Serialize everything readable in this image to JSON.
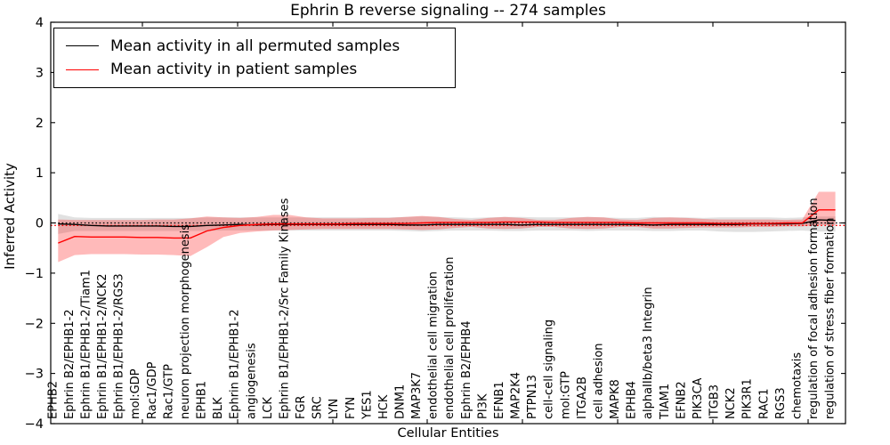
{
  "legend": {
    "entries": [
      {
        "label": "Mean activity in all permuted samples",
        "color": "#000000"
      },
      {
        "label": "Mean activity in patient samples",
        "color": "#ff0000"
      }
    ]
  },
  "chart_data": {
    "type": "line",
    "title": "Ephrin B reverse signaling -- 274 samples",
    "xlabel": "Cellular Entities",
    "ylabel": "Inferred Activity",
    "ylim": [
      -4,
      4
    ],
    "yticks": [
      4,
      3,
      2,
      1,
      0,
      -1,
      -2,
      -3,
      -4
    ],
    "grid": false,
    "legend_position": "upper left",
    "categories": [
      "EPHB2",
      "Ephrin B2/EPHB1-2",
      "Ephrin B1/EPHB1-2/Tiam1",
      "Ephrin B1/EPHB1-2/NCK2",
      "Ephrin B1/EPHB1-2/RGS3",
      "mol:GDP",
      "Rac1/GDP",
      "Rac1/GTP",
      "neuron projection morphogenesis",
      "EPHB1",
      "BLK",
      "Ephrin B1/EPHB1-2",
      "angiogenesis",
      "LCK",
      "Ephrin B1/EPHB1-2/Src Family Kinases",
      "FGR",
      "SRC",
      "LYN",
      "FYN",
      "YES1",
      "HCK",
      "DNM1",
      "MAP3K7",
      "endothelial cell migration",
      "endothelial cell proliferation",
      "Ephrin B2/EPHB4",
      "PI3K",
      "EFNB1",
      "MAP2K4",
      "PTPN13",
      "cell-cell signaling",
      "mol:GTP",
      "ITGA2B",
      "cell adhesion",
      "MAPK8",
      "EPHB4",
      "alphaIIb/beta3 Integrin",
      "TIAM1",
      "EFNB2",
      "PIK3CA",
      "ITGB3",
      "NCK2",
      "PIK3R1",
      "RAC1",
      "RGS3",
      "chemotaxis",
      "regulation of focal adhesion formation",
      "regulation of stress fiber formation"
    ],
    "series": [
      {
        "name": "Mean activity in all permuted samples",
        "color": "#000000",
        "band_color": "#a8a8a8",
        "band_opacity": 0.35,
        "values": [
          -0.02,
          -0.03,
          -0.05,
          -0.06,
          -0.06,
          -0.06,
          -0.06,
          -0.07,
          -0.07,
          -0.05,
          -0.04,
          -0.03,
          -0.04,
          -0.03,
          -0.03,
          -0.03,
          -0.03,
          -0.03,
          -0.03,
          -0.03,
          -0.03,
          -0.04,
          -0.04,
          -0.03,
          -0.03,
          -0.03,
          -0.03,
          -0.03,
          -0.04,
          -0.03,
          -0.03,
          -0.03,
          -0.03,
          -0.03,
          -0.03,
          -0.03,
          -0.04,
          -0.03,
          -0.03,
          -0.03,
          -0.03,
          -0.03,
          -0.02,
          -0.02,
          -0.02,
          -0.01,
          0.06,
          0.05
        ],
        "band_upper": [
          0.18,
          0.11,
          0.1,
          0.1,
          0.1,
          0.1,
          0.1,
          0.1,
          0.1,
          0.11,
          0.11,
          0.11,
          0.11,
          0.11,
          0.11,
          0.11,
          0.11,
          0.11,
          0.11,
          0.11,
          0.11,
          0.12,
          0.13,
          0.12,
          0.11,
          0.1,
          0.11,
          0.12,
          0.12,
          0.11,
          0.11,
          0.11,
          0.12,
          0.11,
          0.1,
          0.1,
          0.12,
          0.11,
          0.11,
          0.1,
          0.11,
          0.11,
          0.11,
          0.11,
          0.1,
          0.11,
          0.13,
          0.13
        ],
        "band_lower": [
          -0.22,
          -0.16,
          -0.16,
          -0.16,
          -0.16,
          -0.16,
          -0.16,
          -0.16,
          -0.16,
          -0.16,
          -0.15,
          -0.15,
          -0.15,
          -0.15,
          -0.15,
          -0.15,
          -0.15,
          -0.15,
          -0.15,
          -0.15,
          -0.15,
          -0.16,
          -0.17,
          -0.16,
          -0.15,
          -0.15,
          -0.15,
          -0.16,
          -0.16,
          -0.15,
          -0.15,
          -0.15,
          -0.16,
          -0.15,
          -0.15,
          -0.15,
          -0.16,
          -0.16,
          -0.15,
          -0.15,
          -0.17,
          -0.18,
          -0.18,
          -0.17,
          -0.16,
          -0.15,
          -0.17,
          -0.17
        ]
      },
      {
        "name": "Mean activity in patient samples",
        "color": "#ff0000",
        "band_color": "#ff0000",
        "band_opacity": 0.27,
        "values": [
          -0.4,
          -0.27,
          -0.28,
          -0.28,
          -0.28,
          -0.29,
          -0.29,
          -0.3,
          -0.3,
          -0.16,
          -0.09,
          -0.05,
          -0.03,
          -0.02,
          -0.02,
          -0.02,
          -0.02,
          -0.02,
          -0.01,
          -0.01,
          -0.01,
          -0.01,
          0.0,
          0.01,
          0.01,
          0.01,
          0.01,
          0.02,
          0.02,
          0.02,
          0.01,
          0.01,
          0.01,
          0.01,
          0.01,
          0.0,
          0.0,
          0.0,
          0.0,
          0.0,
          -0.01,
          -0.01,
          -0.01,
          -0.01,
          0.0,
          0.0,
          0.26,
          0.26
        ],
        "band_upper": [
          0.07,
          0.06,
          0.06,
          0.06,
          0.06,
          0.06,
          0.07,
          0.07,
          0.09,
          0.13,
          0.11,
          0.1,
          0.12,
          0.16,
          0.16,
          0.11,
          0.09,
          0.09,
          0.09,
          0.1,
          0.1,
          0.12,
          0.14,
          0.12,
          0.08,
          0.06,
          0.1,
          0.12,
          0.1,
          0.06,
          0.06,
          0.1,
          0.12,
          0.11,
          0.07,
          0.06,
          0.1,
          0.11,
          0.1,
          0.08,
          0.07,
          0.07,
          0.07,
          0.07,
          0.06,
          0.07,
          0.62,
          0.62
        ],
        "band_lower": [
          -0.78,
          -0.64,
          -0.62,
          -0.62,
          -0.62,
          -0.63,
          -0.63,
          -0.64,
          -0.66,
          -0.48,
          -0.28,
          -0.2,
          -0.17,
          -0.15,
          -0.14,
          -0.13,
          -0.12,
          -0.12,
          -0.12,
          -0.12,
          -0.12,
          -0.13,
          -0.14,
          -0.13,
          -0.1,
          -0.08,
          -0.11,
          -0.12,
          -0.11,
          -0.08,
          -0.08,
          -0.11,
          -0.12,
          -0.11,
          -0.08,
          -0.08,
          -0.11,
          -0.11,
          -0.1,
          -0.09,
          -0.09,
          -0.09,
          -0.08,
          -0.08,
          -0.07,
          -0.07,
          -0.04,
          -0.04
        ]
      }
    ],
    "reference_lines": [
      {
        "y": -0.05,
        "color": "#ff0000",
        "style": "dotted"
      },
      {
        "y": 0.0,
        "color": "#000000",
        "style": "dotted"
      }
    ]
  }
}
